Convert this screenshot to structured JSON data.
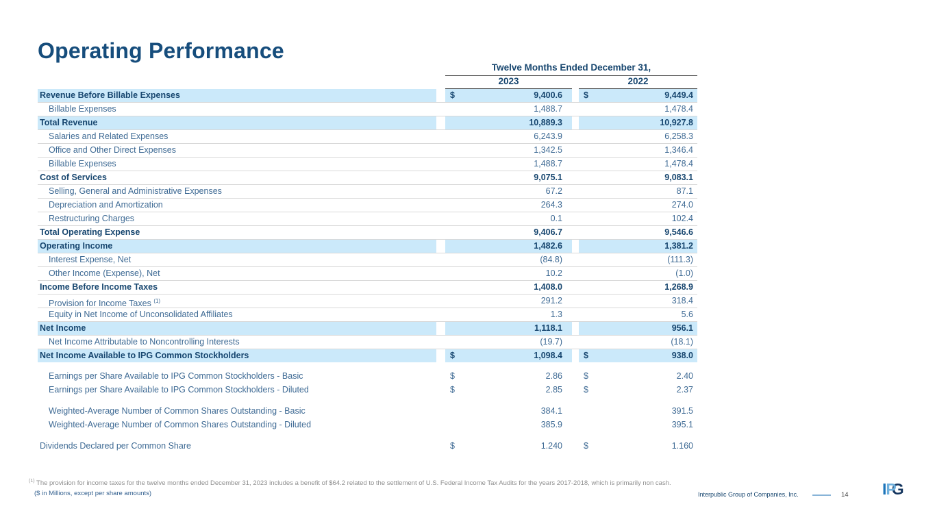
{
  "title": "Operating Performance",
  "table": {
    "period_header": "Twelve Months Ended December 31,",
    "col_headers": [
      "2023",
      "2022"
    ],
    "currency": "$",
    "rows": [
      {
        "label": "Revenue Before Billable Expenses",
        "v2023": "9,400.6",
        "v2022": "9,449.4",
        "bold": true,
        "highlight": true,
        "dollar": true,
        "indent": false
      },
      {
        "label": "Billable Expenses",
        "v2023": "1,488.7",
        "v2022": "1,478.4",
        "indent": true
      },
      {
        "label": "Total Revenue",
        "v2023": "10,889.3",
        "v2022": "10,927.8",
        "bold": true,
        "highlight": true
      },
      {
        "label": "Salaries and Related Expenses",
        "v2023": "6,243.9",
        "v2022": "6,258.3",
        "indent": true
      },
      {
        "label": "Office and Other Direct Expenses",
        "v2023": "1,342.5",
        "v2022": "1,346.4",
        "indent": true
      },
      {
        "label": "Billable Expenses",
        "v2023": "1,488.7",
        "v2022": "1,478.4",
        "indent": true
      },
      {
        "label": "Cost of Services",
        "v2023": "9,075.1",
        "v2022": "9,083.1",
        "bold": true
      },
      {
        "label": "Selling, General and Administrative Expenses",
        "v2023": "67.2",
        "v2022": "87.1",
        "indent": true
      },
      {
        "label": "Depreciation and Amortization",
        "v2023": "264.3",
        "v2022": "274.0",
        "indent": true
      },
      {
        "label": "Restructuring Charges",
        "v2023": "0.1",
        "v2022": "102.4",
        "indent": true
      },
      {
        "label": "Total Operating Expense",
        "v2023": "9,406.7",
        "v2022": "9,546.6",
        "bold": true
      },
      {
        "label": "Operating Income",
        "v2023": "1,482.6",
        "v2022": "1,381.2",
        "bold": true,
        "highlight": true
      },
      {
        "label": "Interest Expense, Net",
        "v2023": "(84.8)",
        "v2022": "(111.3)",
        "indent": true
      },
      {
        "label": "Other Income (Expense), Net",
        "v2023": "10.2",
        "v2022": "(1.0)",
        "indent": true
      },
      {
        "label": "Income Before Income Taxes",
        "v2023": "1,408.0",
        "v2022": "1,268.9",
        "bold": true
      },
      {
        "label": "Provision for Income Taxes",
        "sup": "(1)",
        "v2023": "291.2",
        "v2022": "318.4",
        "indent": true
      },
      {
        "label": "Equity in Net Income of Unconsolidated Affiliates",
        "v2023": "1.3",
        "v2022": "5.6",
        "indent": true
      },
      {
        "label": "Net Income",
        "v2023": "1,118.1",
        "v2022": "956.1",
        "bold": true,
        "highlight": true
      },
      {
        "label": "Net Income Attributable to Noncontrolling Interests",
        "v2023": "(19.7)",
        "v2022": "(18.1)",
        "indent": true
      },
      {
        "label": "Net Income Available to IPG Common Stockholders",
        "v2023": "1,098.4",
        "v2022": "938.0",
        "bold": true,
        "highlight": true,
        "dollar": true
      }
    ],
    "eps_rows": [
      {
        "label": "Earnings per Share Available to IPG Common Stockholders - Basic",
        "v2023": "2.86",
        "v2022": "2.40",
        "dollar": true,
        "indent": true
      },
      {
        "label": "Earnings per Share Available to IPG Common Stockholders - Diluted",
        "v2023": "2.85",
        "v2022": "2.37",
        "dollar": true,
        "indent": true
      }
    ],
    "share_rows": [
      {
        "label": "Weighted-Average Number of Common Shares Outstanding - Basic",
        "v2023": "384.1",
        "v2022": "391.5",
        "indent": true
      },
      {
        "label": "Weighted-Average Number of Common Shares Outstanding - Diluted",
        "v2023": "385.9",
        "v2022": "395.1",
        "indent": true
      }
    ],
    "dividend_rows": [
      {
        "label": "Dividends Declared per Common Share",
        "v2023": "1.240",
        "v2022": "1.160",
        "dollar": true,
        "indent": false
      }
    ]
  },
  "footnote": {
    "marker": "(1)",
    "text": "The provision for income taxes for the twelve months ended December 31, 2023 includes a benefit of $64.2 related to the settlement of U.S. Federal Income Tax Audits for the years 2017-2018, which is primarily non cash."
  },
  "units_note": "($ in Millions, except per share amounts)",
  "footer": {
    "company": "Interpublic Group of Companies, Inc.",
    "page": "14",
    "logo_letters": [
      "I",
      "P",
      "G"
    ]
  },
  "colors": {
    "title": "#164d7c",
    "navy": "#17466F",
    "text_blue": "#3E6A94",
    "highlight": "#CBE9FA"
  }
}
